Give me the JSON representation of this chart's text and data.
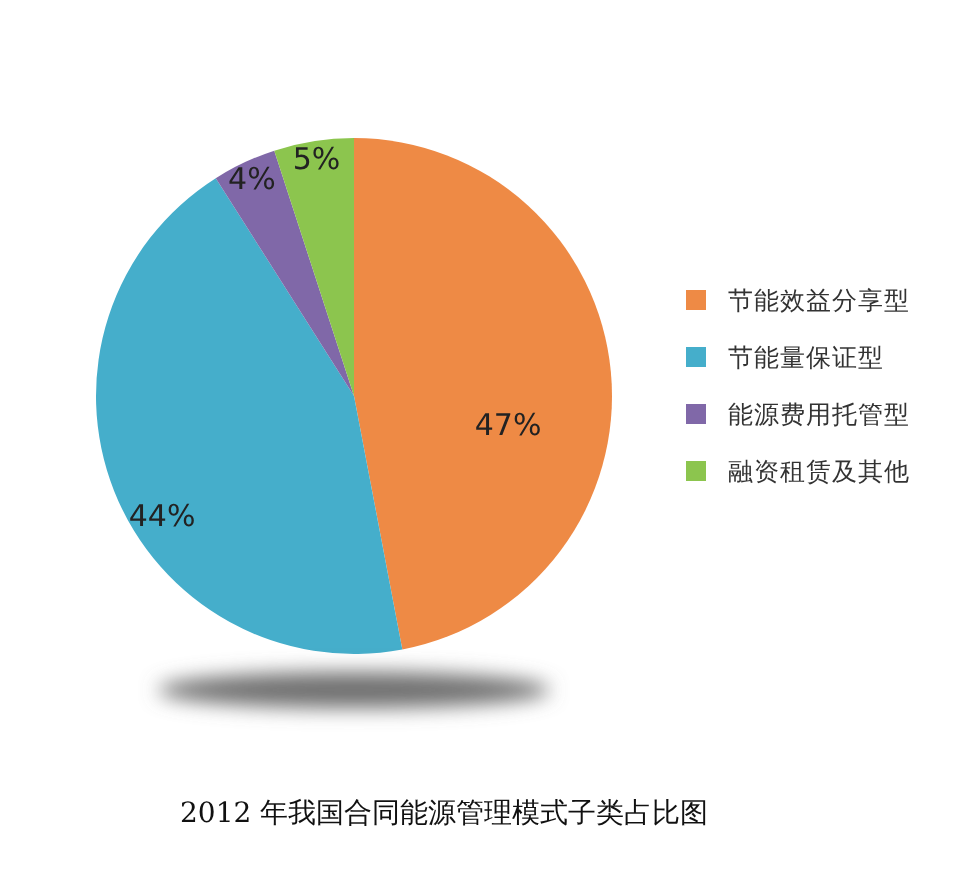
{
  "chart_data": {
    "type": "pie",
    "title": "2012 年我国合同能源管理模式子类占比图",
    "categories": [
      "节能效益分享型",
      "节能量保证型",
      "能源费用托管型",
      "融资租赁及其他"
    ],
    "values": [
      47,
      44,
      4,
      5
    ],
    "colors": [
      "#ee8a45",
      "#45aecb",
      "#8068a8",
      "#8cc54e"
    ],
    "value_labels": [
      "47%",
      "44%",
      "4%",
      "5%"
    ],
    "legend": "right"
  }
}
